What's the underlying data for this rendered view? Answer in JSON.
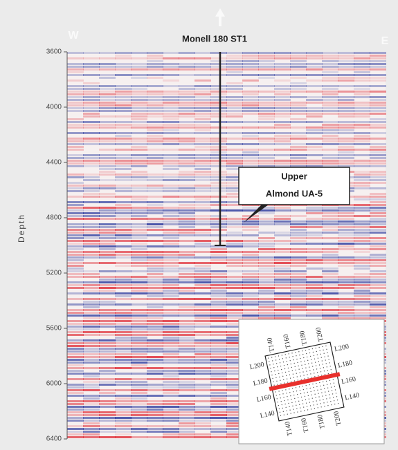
{
  "chart_data": {
    "type": "seismic",
    "title": "Monell 180 ST1",
    "y_label": "Depth",
    "ylim": [
      3600,
      6400
    ],
    "yticks": [
      3600,
      4000,
      4400,
      4800,
      5200,
      5600,
      6000,
      6400
    ],
    "compass": {
      "left": "W",
      "right": "E"
    },
    "annotation": {
      "lines": [
        "Upper",
        "Almond UA-5"
      ]
    },
    "inset": {
      "top_labels": [
        "T140",
        "T160",
        "T180",
        "T200"
      ],
      "bottom_labels": [
        "T140",
        "T160",
        "T180",
        "T200"
      ],
      "left_labels": [
        "L200",
        "L180",
        "L160",
        "L140"
      ],
      "right_labels": [
        "L200",
        "L180",
        "L160",
        "L140"
      ]
    }
  }
}
